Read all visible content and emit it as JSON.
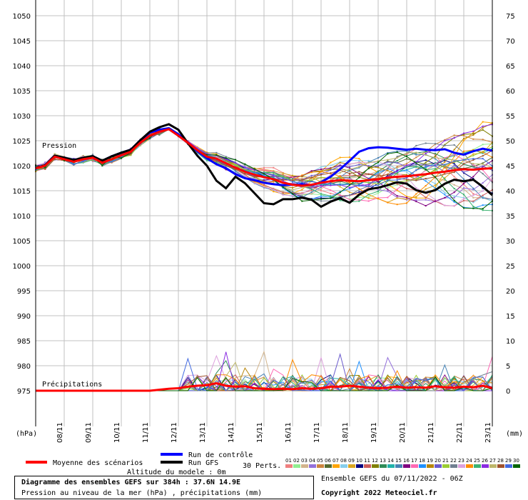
{
  "chart_data": {
    "type": "line",
    "title": "Diagramme des ensembles GEFS sur 384h : 37.6N 14.9E",
    "subtitle": "Pression au niveau de la mer (hPa) , précipitations (mm)",
    "left_axis": {
      "unit": "(hPa)",
      "ticks": [
        1050,
        1045,
        1040,
        1035,
        1030,
        1025,
        1020,
        1015,
        1010,
        1005,
        1000,
        995,
        990,
        985,
        980,
        975
      ],
      "range": [
        975,
        1050
      ]
    },
    "right_axis": {
      "unit": "(mm)",
      "ticks": [
        75,
        70,
        65,
        60,
        55,
        50,
        45,
        40,
        35,
        30,
        25,
        20,
        15,
        10,
        5,
        0
      ],
      "range": [
        0,
        75
      ]
    },
    "x_ticks": [
      "08/11",
      "09/11",
      "10/11",
      "11/11",
      "12/11",
      "13/11",
      "14/11",
      "15/11",
      "16/11",
      "17/11",
      "18/11",
      "19/11",
      "20/11",
      "21/11",
      "22/11",
      "23/11"
    ],
    "labels": {
      "pressure": "Pression",
      "precip": "Précipitations"
    },
    "altitude": "Altitude du modele : 0m",
    "series": [
      {
        "name": "Moyenne des scénarios",
        "color": "#ff0000",
        "pressure": [
          1019.5,
          1020,
          1021.8,
          1021.3,
          1020.8,
          1021.3,
          1021.6,
          1020.6,
          1021.3,
          1022.1,
          1022.8,
          1024.6,
          1026,
          1026.8,
          1027.3,
          1026,
          1024.6,
          1023.1,
          1021.8,
          1021.4,
          1020.5,
          1019.6,
          1018.8,
          1018.2,
          1017.7,
          1017.3,
          1016.6,
          1016.2,
          1016,
          1016.2,
          1016.6,
          1016.9,
          1017.1,
          1017,
          1016.9,
          1017.1,
          1017.3,
          1017.6,
          1017.8,
          1017.9,
          1018.1,
          1018.3,
          1018.6,
          1018.8,
          1019.1,
          1019.3,
          1019.2,
          1019.4,
          1019.5
        ],
        "precip": [
          0,
          0,
          0,
          0,
          0,
          0,
          0,
          0,
          0,
          0,
          0,
          0,
          0,
          0.2,
          0.4,
          0.5,
          0.8,
          1.0,
          1.1,
          1.5,
          1.0,
          0.8,
          0.9,
          0.5,
          0.4,
          0.3,
          0.4,
          0.3,
          0.5,
          0.4,
          0.5,
          0.8,
          0.8,
          1.0,
          0.8,
          0.6,
          0.5,
          0.6,
          0.8,
          0.6,
          0.7,
          0.6,
          0.9,
          0.7,
          0.6,
          0.8,
          0.7,
          1.0,
          0.5
        ]
      },
      {
        "name": "Run de contrôle",
        "color": "#0000ff",
        "pressure": [
          1019.5,
          1020.1,
          1022,
          1021.6,
          1021.1,
          1021.6,
          1021.9,
          1021,
          1021.9,
          1022.6,
          1023.2,
          1025.1,
          1026.6,
          1027.2,
          1027.5,
          1026.3,
          1024.6,
          1022.9,
          1021.5,
          1020.3,
          1019.5,
          1018.3,
          1017.5,
          1017.1,
          1016.6,
          1016.3,
          1016.1,
          1016.2,
          1016.3,
          1016.1,
          1016.7,
          1017.8,
          1019.3,
          1021,
          1022.8,
          1023.5,
          1023.7,
          1023.6,
          1023.4,
          1023.2,
          1023.4,
          1023.2,
          1023.1,
          1023.3,
          1022.6,
          1022.2,
          1022.9,
          1023.4,
          1023
        ]
      },
      {
        "name": "Run GFS",
        "color": "#000000",
        "pressure": [
          1019.5,
          1020.1,
          1022,
          1021.6,
          1021.1,
          1021.6,
          1021.9,
          1021,
          1021.9,
          1022.6,
          1023.2,
          1025.1,
          1026.8,
          1027.7,
          1028.3,
          1027.2,
          1024.5,
          1022,
          1020,
          1017,
          1015.5,
          1017.8,
          1016.5,
          1014.5,
          1012.5,
          1012.3,
          1013.3,
          1013.3,
          1013.6,
          1013.2,
          1011.8,
          1012.8,
          1013.5,
          1012.6,
          1014.2,
          1015.3,
          1015.6,
          1016.1,
          1016.7,
          1016.4,
          1015.1,
          1014.6,
          1015.1,
          1016.4,
          1017.2,
          1016.9,
          1017.2,
          1015.8,
          1014.1
        ]
      }
    ],
    "footer": {
      "legend_mean": "Moyenne des scénarios",
      "legend_control": "Run de contrôle",
      "legend_gfs": "Run GFS",
      "perts_label": "30 Perts.",
      "pert_numbers": [
        "01",
        "02",
        "03",
        "04",
        "05",
        "06",
        "07",
        "08",
        "09",
        "10",
        "11",
        "12",
        "13",
        "14",
        "15",
        "16",
        "17",
        "18",
        "19",
        "20",
        "21",
        "22",
        "23",
        "24",
        "25",
        "26",
        "27",
        "28",
        "29",
        "30"
      ],
      "pert_colors": [
        "#f08080",
        "#90ee90",
        "#d2b48c",
        "#9370db",
        "#cd853f",
        "#556b2f",
        "#ffa500",
        "#87ceeb",
        "#daa520",
        "#000080",
        "#cd5c5c",
        "#808000",
        "#2e8b57",
        "#20b2aa",
        "#4682b4",
        "#800080",
        "#ff69b4",
        "#1e90ff",
        "#b8860b",
        "#6a5acd",
        "#9acd32",
        "#708090",
        "#dda0dd",
        "#ff8c00",
        "#3cb371",
        "#8a2be2",
        "#bdb76b",
        "#a0522d",
        "#4169e1",
        "#006400"
      ],
      "ensemble_text": "Ensemble GEFS du 07/11/2022 - 06Z",
      "copyright": "Copyright 2022 Meteociel.fr"
    }
  }
}
